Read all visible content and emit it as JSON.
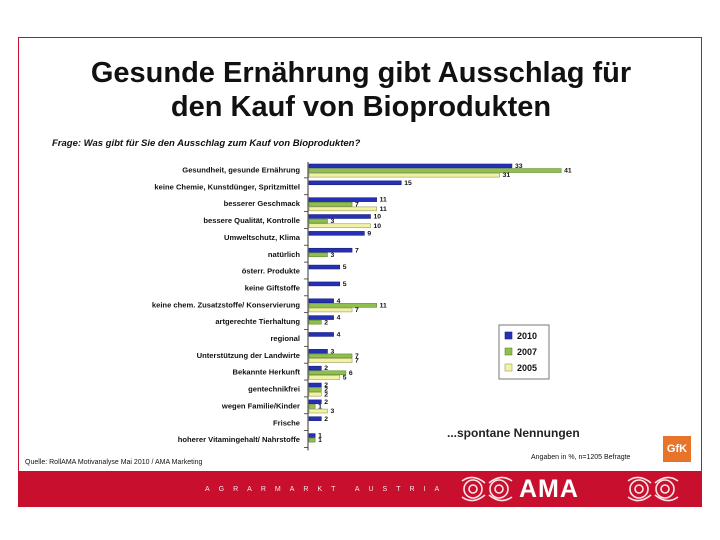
{
  "title_line1": "Gesunde Ernährung gibt Ausschlag für",
  "title_line2": "den Kauf von Bioprodukten",
  "question": "Frage: Was gibt für Sie den Ausschlag zum Kauf von Bioprodukten?",
  "annotation": "...spontane Nennungen",
  "source": "Quelle: RollAMA Motivanalyse Mai 2010 / AMA Marketing",
  "note": "Angaben in %, n=1205 Befragte",
  "gfk_logo": "GfK",
  "footer_text": "AGRARMARKT AUSTRIA",
  "ama_logo": "AMA",
  "colors": {
    "s2010": "#2630b5",
    "s2007": "#8fbf4f",
    "s2005": "#f2f2a6",
    "brand": "#c8102e"
  },
  "chart_data": {
    "type": "bar",
    "orientation": "horizontal",
    "title": "Gesunde Ernährung gibt Ausschlag für den Kauf von Bioprodukten",
    "subtitle": "Frage: Was gibt für Sie den Ausschlag zum Kauf von Bioprodukten?",
    "unit": "%",
    "categories": [
      "Gesundheit, gesunde Ernährung",
      "keine Chemie, Kunstdünger, Spritzmittel",
      "besserer Geschmack",
      "bessere Qualität, Kontrolle",
      "Umweltschutz, Klima",
      "natürlich",
      "österr. Produkte",
      "keine Giftstoffe",
      "keine chem. Zusatzstoffe/ Konservierung",
      "artgerechte Tierhaltung",
      "regional",
      "Unterstützung der Landwirte",
      "Bekannte Herkunft",
      "gentechnikfrei",
      "wegen Familie/Kinder",
      "Frische",
      "hoherer Vitamingehalt/ Nahrstoffe"
    ],
    "series": [
      {
        "name": "2010",
        "values": [
          33,
          15,
          11,
          10,
          9,
          7,
          5,
          5,
          4,
          4,
          4,
          3,
          2,
          2,
          2,
          2,
          1
        ]
      },
      {
        "name": "2007",
        "values": [
          41,
          null,
          7,
          3,
          null,
          3,
          null,
          null,
          11,
          2,
          null,
          7,
          6,
          2,
          1,
          null,
          1
        ]
      },
      {
        "name": "2005",
        "values": [
          31,
          null,
          11,
          10,
          null,
          null,
          null,
          null,
          7,
          null,
          null,
          7,
          5,
          2,
          3,
          null,
          null
        ]
      }
    ],
    "legend": [
      "2010",
      "2007",
      "2005"
    ],
    "legend_position": "right",
    "xlim": [
      0,
      45
    ]
  }
}
